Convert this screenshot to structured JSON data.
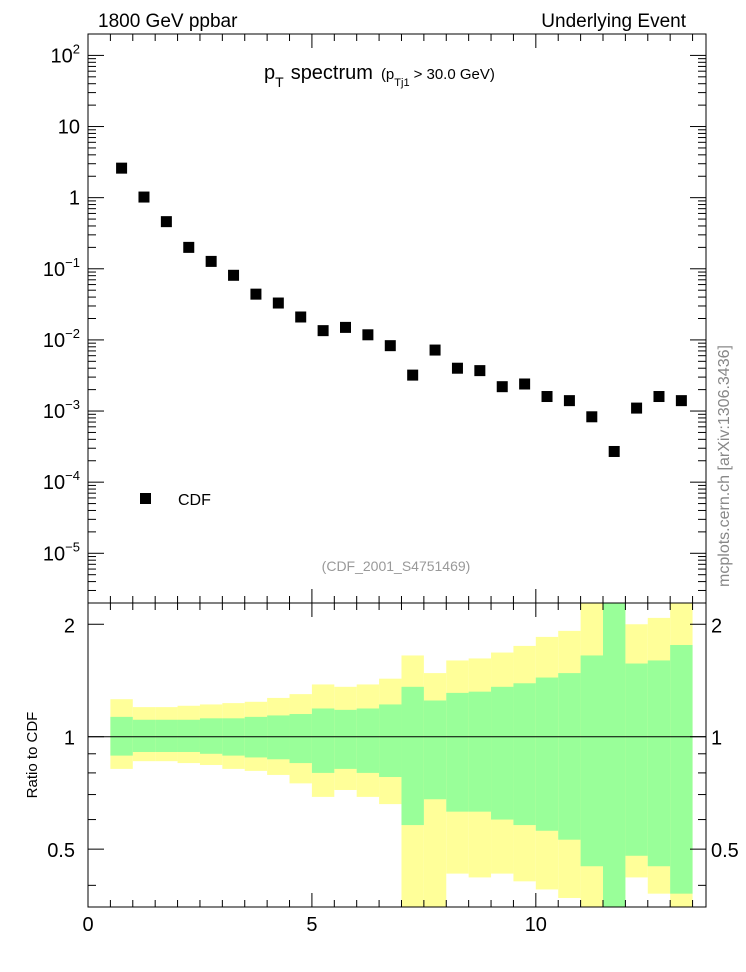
{
  "header": {
    "left": "1800 GeV ppbar",
    "right": "Underlying Event"
  },
  "side_label": "mcplots.cern.ch [arXiv:1306.3436]",
  "chart_data": [
    {
      "type": "scatter",
      "title_main": "p",
      "title_main_sub": "T",
      "title_word": "spectrum",
      "title_cut_prefix": "(p",
      "title_cut_sub": "Tj1",
      "title_cut_suffix": "> 30.0 GeV)",
      "analysis_id": "(CDF_2001_S4751469)",
      "xlim": [
        0,
        13.8
      ],
      "ylim": [
        2e-06,
        200
      ],
      "yscale": "log",
      "y_tick_labels": [
        {
          "value": 100,
          "base": "10",
          "exp": "2"
        },
        {
          "value": 10,
          "base": "10",
          "exp": ""
        },
        {
          "value": 1,
          "base": "1",
          "exp": ""
        },
        {
          "value": 0.1,
          "base": "10",
          "exp": "−1"
        },
        {
          "value": 0.01,
          "base": "10",
          "exp": "−2"
        },
        {
          "value": 0.001,
          "base": "10",
          "exp": "−3"
        },
        {
          "value": 0.0001,
          "base": "10",
          "exp": "−4"
        },
        {
          "value": 1e-05,
          "base": "10",
          "exp": "−5"
        }
      ],
      "series": [
        {
          "name": "CDF",
          "marker": "square",
          "color": "#000000",
          "x": [
            0.75,
            1.25,
            1.75,
            2.25,
            2.75,
            3.25,
            3.75,
            4.25,
            4.75,
            5.25,
            5.75,
            6.25,
            6.75,
            7.25,
            7.75,
            8.25,
            8.75,
            9.25,
            9.75,
            10.25,
            10.75,
            11.25,
            11.75,
            12.25,
            12.75,
            13.25
          ],
          "y": [
            2.6,
            1.02,
            0.46,
            0.2,
            0.127,
            0.081,
            0.044,
            0.033,
            0.021,
            0.0135,
            0.015,
            0.0118,
            0.0083,
            0.0032,
            0.0072,
            0.004,
            0.0037,
            0.0022,
            0.0024,
            0.0016,
            0.0014,
            0.00083,
            0.00027,
            0.0011,
            0.0016,
            0.0014
          ]
        }
      ],
      "legend_position": "lower-left"
    },
    {
      "type": "area",
      "ylabel": "Ratio to CDF",
      "xlim": [
        0,
        13.8
      ],
      "ylim": [
        0.35,
        2.28
      ],
      "x_tick_labels": [
        "0",
        "5",
        "10"
      ],
      "y_tick_labels": [
        "0.5",
        "1",
        "2"
      ],
      "reference_line": 1,
      "bin_edges": [
        0.5,
        1.0,
        1.5,
        2.0,
        2.5,
        3.0,
        3.5,
        4.0,
        4.5,
        5.0,
        5.5,
        6.0,
        6.5,
        7.0,
        7.5,
        8.0,
        8.5,
        9.0,
        9.5,
        10.0,
        10.5,
        11.0,
        11.5,
        12.0,
        12.5,
        13.0,
        13.5
      ],
      "bands": [
        {
          "name": "outer",
          "color": "#ffff99",
          "upper": [
            1.26,
            1.2,
            1.2,
            1.21,
            1.22,
            1.23,
            1.24,
            1.27,
            1.3,
            1.38,
            1.36,
            1.38,
            1.43,
            1.65,
            1.48,
            1.6,
            1.62,
            1.68,
            1.75,
            1.85,
            1.92,
            2.28,
            2.28,
            2.0,
            2.08,
            2.28
          ],
          "lower": [
            0.82,
            0.86,
            0.86,
            0.85,
            0.84,
            0.82,
            0.81,
            0.79,
            0.75,
            0.69,
            0.72,
            0.69,
            0.66,
            0.35,
            0.35,
            0.43,
            0.42,
            0.43,
            0.41,
            0.39,
            0.37,
            0.35,
            0.35,
            0.42,
            0.38,
            0.35
          ]
        },
        {
          "name": "inner",
          "color": "#99ff99",
          "upper": [
            1.13,
            1.11,
            1.11,
            1.11,
            1.12,
            1.12,
            1.13,
            1.14,
            1.15,
            1.19,
            1.18,
            1.19,
            1.22,
            1.36,
            1.25,
            1.31,
            1.32,
            1.36,
            1.39,
            1.44,
            1.48,
            1.65,
            2.28,
            1.57,
            1.6,
            1.76
          ],
          "lower": [
            0.89,
            0.91,
            0.91,
            0.91,
            0.9,
            0.89,
            0.88,
            0.87,
            0.85,
            0.8,
            0.82,
            0.8,
            0.78,
            0.58,
            0.68,
            0.63,
            0.63,
            0.6,
            0.58,
            0.56,
            0.53,
            0.45,
            0.35,
            0.48,
            0.45,
            0.38
          ]
        }
      ]
    }
  ]
}
